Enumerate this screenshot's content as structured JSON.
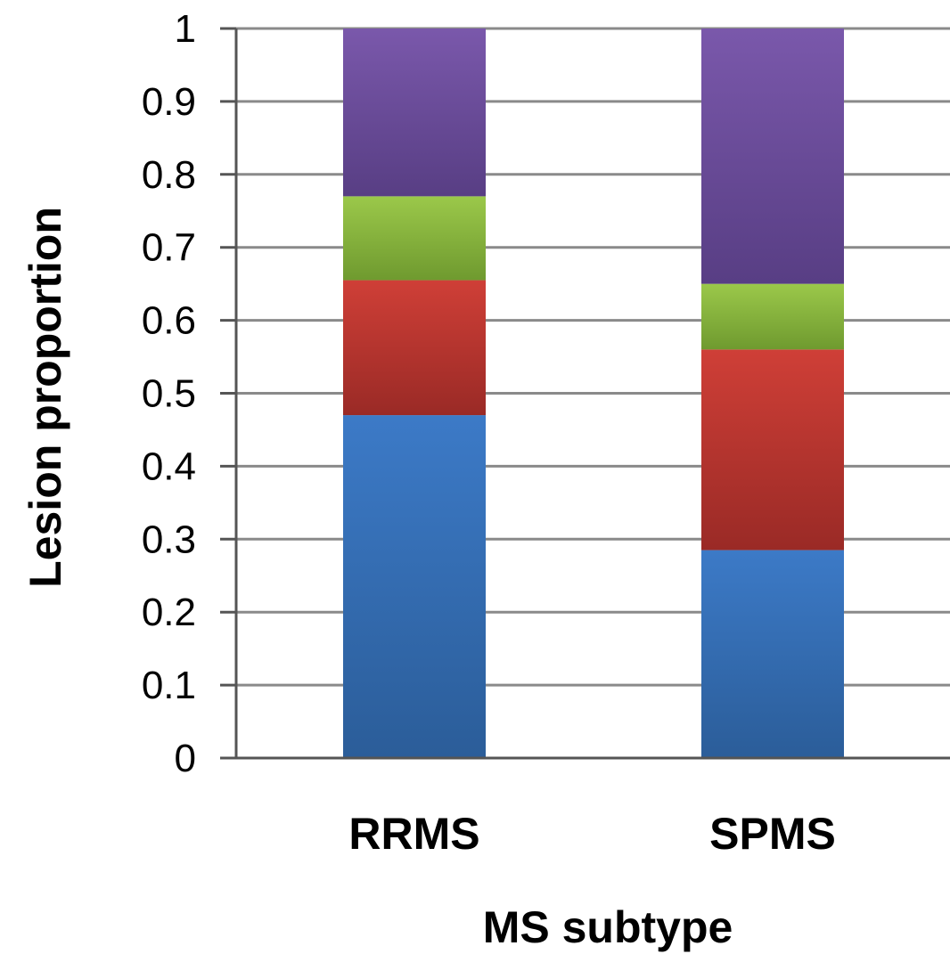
{
  "chart_data": {
    "type": "bar",
    "stacked": true,
    "categories": [
      "RRMS",
      "SPMS"
    ],
    "series": [
      {
        "values": [
          0.47,
          0.285
        ],
        "color": "#3c7ac7",
        "color_dark": "#2b5d99"
      },
      {
        "values": [
          0.185,
          0.275
        ],
        "color": "#cf3f37",
        "color_dark": "#9a2a26"
      },
      {
        "values": [
          0.115,
          0.09
        ],
        "color": "#9bc84a",
        "color_dark": "#6f9a2f"
      },
      {
        "values": [
          0.23,
          0.35
        ],
        "color": "#7a58ab",
        "color_dark": "#583e84"
      }
    ],
    "xlabel": "MS subtype",
    "ylabel": "Lesion proportion",
    "ylim": [
      0,
      1
    ],
    "yticks": [
      "0",
      "0.1",
      "0.2",
      "0.3",
      "0.4",
      "0.5",
      "0.6",
      "0.7",
      "0.8",
      "0.9",
      "1"
    ],
    "grid": true,
    "legend": "none"
  }
}
